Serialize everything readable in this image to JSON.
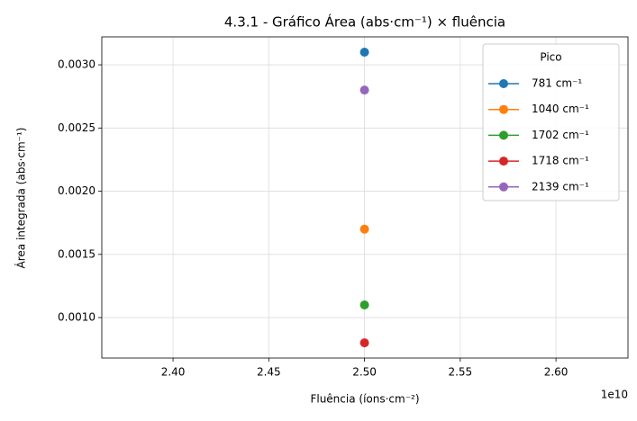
{
  "chart_data": {
    "type": "line",
    "title": "4.3.1 - Gráfico Área (abs·cm⁻¹) × fluência",
    "x_label": "Fluência (íons·cm⁻²)",
    "y_label": "Área integrada (abs·cm⁻¹)",
    "x_offset_label": "1e10",
    "x": [
      25000000000
    ],
    "series": [
      {
        "name": "781 cm⁻¹",
        "color": "#1f77b4",
        "values": [
          0.0031
        ]
      },
      {
        "name": "1040 cm⁻¹",
        "color": "#ff7f0e",
        "values": [
          0.0017
        ]
      },
      {
        "name": "1702 cm⁻¹",
        "color": "#2ca02c",
        "values": [
          0.0011
        ]
      },
      {
        "name": "1718 cm⁻¹",
        "color": "#d62728",
        "values": [
          0.0008
        ]
      },
      {
        "name": "2139 cm⁻¹",
        "color": "#9467bd",
        "values": [
          0.0028
        ]
      }
    ],
    "legend_title": "Pico",
    "legend": "upper right",
    "grid": true,
    "xlim": [
      23628000000,
      26376000000
    ],
    "xticks": [
      {
        "value": 24000000000,
        "label": "2.40"
      },
      {
        "value": 24500000000,
        "label": "2.45"
      },
      {
        "value": 25000000000,
        "label": "2.50"
      },
      {
        "value": 25500000000,
        "label": "2.55"
      },
      {
        "value": 26000000000,
        "label": "2.60"
      }
    ],
    "ylim": [
      0.00068,
      0.003221
    ],
    "yticks": [
      {
        "value": 0.001,
        "label": "0.0010"
      },
      {
        "value": 0.0015,
        "label": "0.0015"
      },
      {
        "value": 0.002,
        "label": "0.0020"
      },
      {
        "value": 0.0025,
        "label": "0.0025"
      },
      {
        "value": 0.003,
        "label": "0.0030"
      }
    ]
  }
}
